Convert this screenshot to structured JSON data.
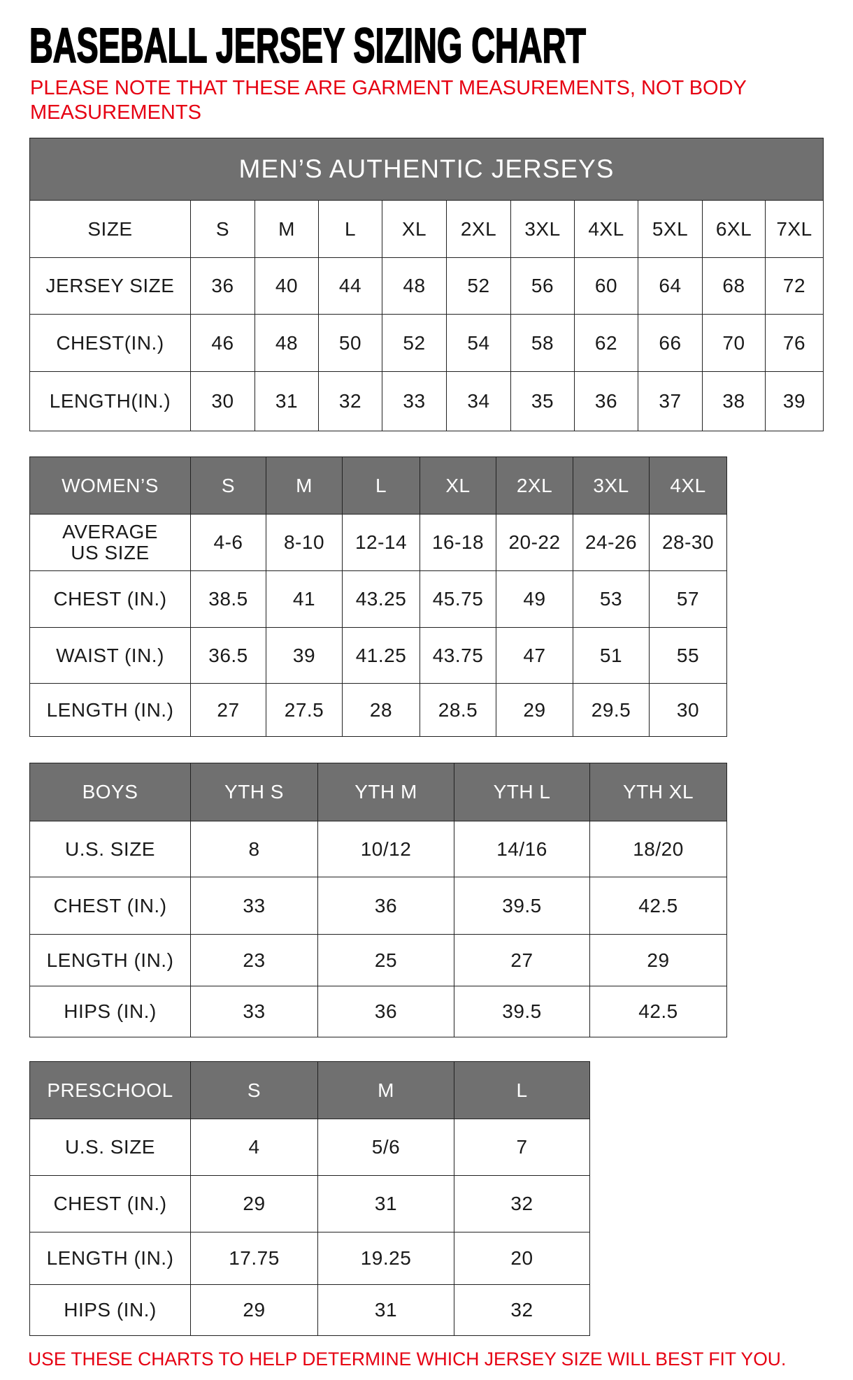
{
  "title": "BASEBALL JERSEY SIZING CHART",
  "note": "PLEASE NOTE THAT THESE ARE GARMENT MEASUREMENTS, NOT BODY MEASUREMENTS",
  "footer": "USE THESE CHARTS TO HELP DETERMINE WHICH JERSEY SIZE WILL BEST FIT YOU.",
  "colors": {
    "header_bg": "#707070",
    "note_red": "#e60012"
  },
  "tables": [
    {
      "id": "mens",
      "banner": "MEN’S AUTHENTIC JERSEYS",
      "header": [
        "SIZE",
        "S",
        "M",
        "L",
        "XL",
        "2XL",
        "3XL",
        "4XL",
        "5XL",
        "6XL",
        "7XL"
      ],
      "header_dark": false,
      "rows": [
        [
          "JERSEY SIZE",
          "36",
          "40",
          "44",
          "48",
          "52",
          "56",
          "60",
          "64",
          "68",
          "72"
        ],
        [
          "CHEST(IN.)",
          "46",
          "48",
          "50",
          "52",
          "54",
          "58",
          "62",
          "66",
          "70",
          "76"
        ],
        [
          "LENGTH(IN.)",
          "30",
          "31",
          "32",
          "33",
          "34",
          "35",
          "36",
          "37",
          "38",
          "39"
        ]
      ]
    },
    {
      "id": "womens",
      "header": [
        "WOMEN’S",
        "S",
        "M",
        "L",
        "XL",
        "2XL",
        "3XL",
        "4XL"
      ],
      "header_dark": true,
      "rows": [
        [
          "AVERAGE US SIZE",
          "4-6",
          "8-10",
          "12-14",
          "16-18",
          "20-22",
          "24-26",
          "28-30"
        ],
        [
          "CHEST (IN.)",
          "38.5",
          "41",
          "43.25",
          "45.75",
          "49",
          "53",
          "57"
        ],
        [
          "WAIST (IN.)",
          "36.5",
          "39",
          "41.25",
          "43.75",
          "47",
          "51",
          "55"
        ],
        [
          "LENGTH (IN.)",
          "27",
          "27.5",
          "28",
          "28.5",
          "29",
          "29.5",
          "30"
        ]
      ]
    },
    {
      "id": "boys",
      "header": [
        "BOYS",
        "YTH S",
        "YTH M",
        "YTH L",
        "YTH XL"
      ],
      "header_dark": true,
      "rows": [
        [
          "U.S. SIZE",
          "8",
          "10/12",
          "14/16",
          "18/20"
        ],
        [
          "CHEST (IN.)",
          "33",
          "36",
          "39.5",
          "42.5"
        ],
        [
          "LENGTH (IN.)",
          "23",
          "25",
          "27",
          "29"
        ],
        [
          "HIPS (IN.)",
          "33",
          "36",
          "39.5",
          "42.5"
        ]
      ]
    },
    {
      "id": "preschool",
      "header": [
        "PRESCHOOL",
        "S",
        "M",
        "L"
      ],
      "header_dark": true,
      "rows": [
        [
          "U.S. SIZE",
          "4",
          "5/6",
          "7"
        ],
        [
          "CHEST (IN.)",
          "29",
          "31",
          "32"
        ],
        [
          "LENGTH (IN.)",
          "17.75",
          "19.25",
          "20"
        ],
        [
          "HIPS (IN.)",
          "29",
          "31",
          "32"
        ]
      ]
    }
  ]
}
